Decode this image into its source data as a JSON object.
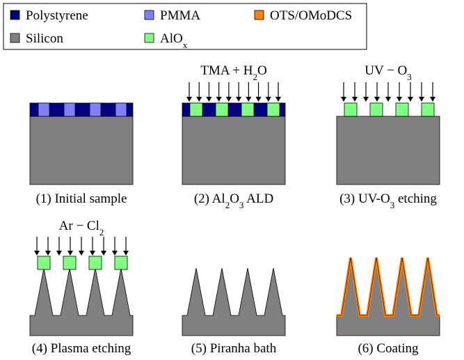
{
  "legend": {
    "items": [
      {
        "label": [
          "Polystyrene"
        ],
        "color": "#000080"
      },
      {
        "label": [
          "PMMA"
        ],
        "color": "#8080ff"
      },
      {
        "label": [
          "OTS/OMoDCS"
        ],
        "color": "#ff8000"
      },
      {
        "label": [
          "Silicon"
        ],
        "color": "#808080"
      },
      {
        "label": [
          "AlO",
          "x"
        ],
        "color": "#80ff80"
      }
    ]
  },
  "panels": [
    {
      "caption": [
        "(1) Initial sample"
      ]
    },
    {
      "process": [
        "TMA + H",
        "2",
        "O"
      ],
      "caption": [
        "(2) Al",
        "2",
        "O",
        "3",
        " ALD"
      ]
    },
    {
      "process": [
        "UV − O",
        "3"
      ],
      "caption": [
        "(3) UV-O",
        "3",
        " etching"
      ]
    },
    {
      "process": [
        "Ar − Cl",
        "2"
      ],
      "caption": [
        "(4) Plasma etching"
      ]
    },
    {
      "caption": [
        "(5) Piranha bath"
      ]
    },
    {
      "caption": [
        "(6) Coating"
      ]
    }
  ]
}
